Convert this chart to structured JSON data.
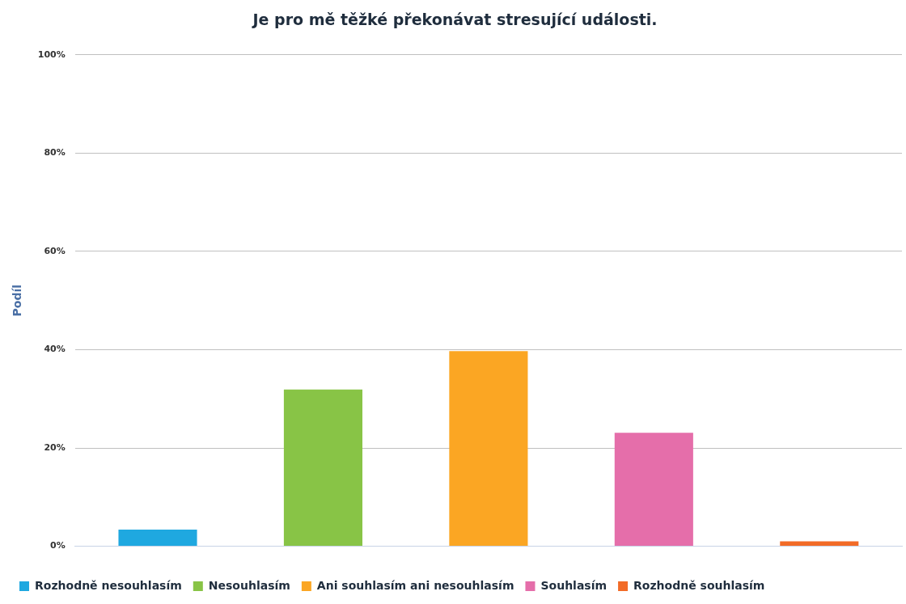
{
  "chart_data": {
    "type": "bar",
    "title": "Je pro mě těžké překonávat stresující události.",
    "ylabel": "Podíl",
    "categories": [
      null,
      null,
      null,
      null,
      null
    ],
    "series": [
      {
        "name": "Rozhodně nesouhlasím",
        "color": "#1fa8e0",
        "values": [
          3.4,
          null,
          null,
          null,
          null
        ]
      },
      {
        "name": "Nesouhlasím",
        "color": "#88c446",
        "values": [
          null,
          31.9,
          null,
          null,
          null
        ]
      },
      {
        "name": "Ani souhlasím ani nesouhlasím",
        "color": "#fba623",
        "values": [
          null,
          null,
          39.7,
          null,
          null
        ]
      },
      {
        "name": "Souhlasím",
        "color": "#e56eaa",
        "values": [
          null,
          null,
          null,
          23.1,
          null
        ]
      },
      {
        "name": "Rozhodně souhlasím",
        "color": "#f26b27",
        "values": [
          null,
          null,
          null,
          null,
          1.0
        ]
      }
    ],
    "ylim": [
      0,
      100
    ],
    "yticks": [
      {
        "value": 0,
        "label": "0%"
      },
      {
        "value": 20,
        "label": "20%"
      },
      {
        "value": 40,
        "label": "40%"
      },
      {
        "value": 60,
        "label": "60%"
      },
      {
        "value": 80,
        "label": "80%"
      },
      {
        "value": 100,
        "label": "100%"
      }
    ],
    "grid": "y",
    "legend": "bottom"
  }
}
